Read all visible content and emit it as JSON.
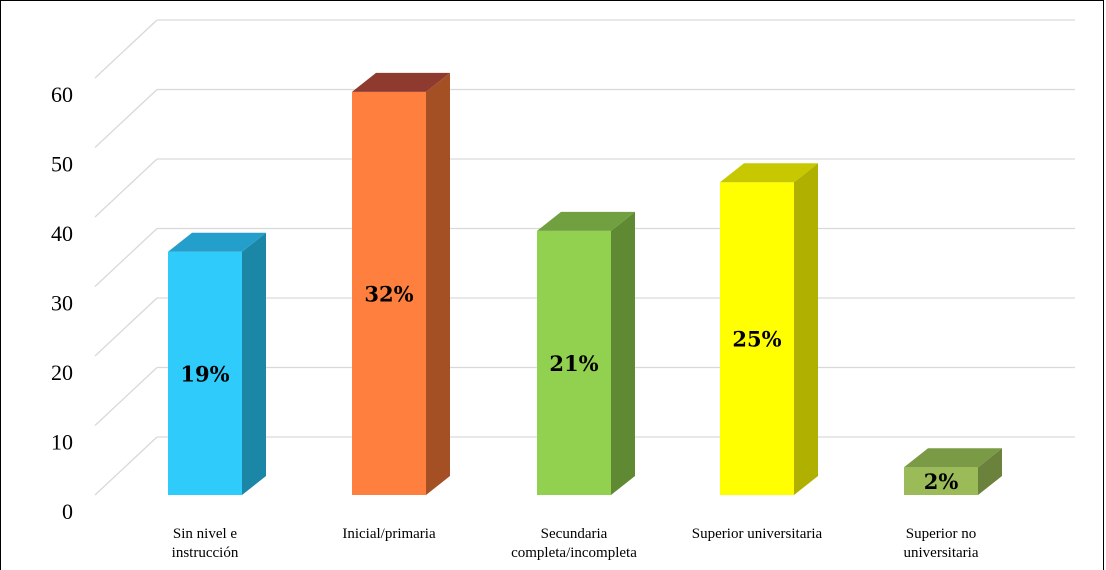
{
  "chart_data": {
    "type": "bar",
    "style": "3d-column",
    "categories": [
      [
        "Sin nivel e",
        "instrucción"
      ],
      [
        "Inicial/primaria"
      ],
      [
        "Secundaria",
        "completa/incompleta"
      ],
      [
        "Superior universitaria"
      ],
      [
        "Superior no",
        "universitaria"
      ]
    ],
    "values": [
      35,
      58,
      38,
      45,
      4
    ],
    "data_labels": [
      "19%",
      "32%",
      "21%",
      "25%",
      "2%"
    ],
    "colors": [
      {
        "front": "#2ecbfb",
        "side": "#1b86a6",
        "top": "#249fcb"
      },
      {
        "front": "#fe7f3e",
        "side": "#a54f25",
        "top": "#8e3a2f"
      },
      {
        "front": "#92d050",
        "side": "#5f8a33",
        "top": "#70a040"
      },
      {
        "front": "#ffff00",
        "side": "#b0b000",
        "top": "#c8c800"
      },
      {
        "front": "#9bbb59",
        "side": "#6b823c",
        "top": "#7a9a45"
      }
    ],
    "ylim": [
      0,
      60
    ],
    "yticks": [
      0,
      10,
      20,
      30,
      40,
      50,
      60
    ],
    "grid": true,
    "legend": "none",
    "title": "",
    "xlabel": "",
    "ylabel": ""
  }
}
